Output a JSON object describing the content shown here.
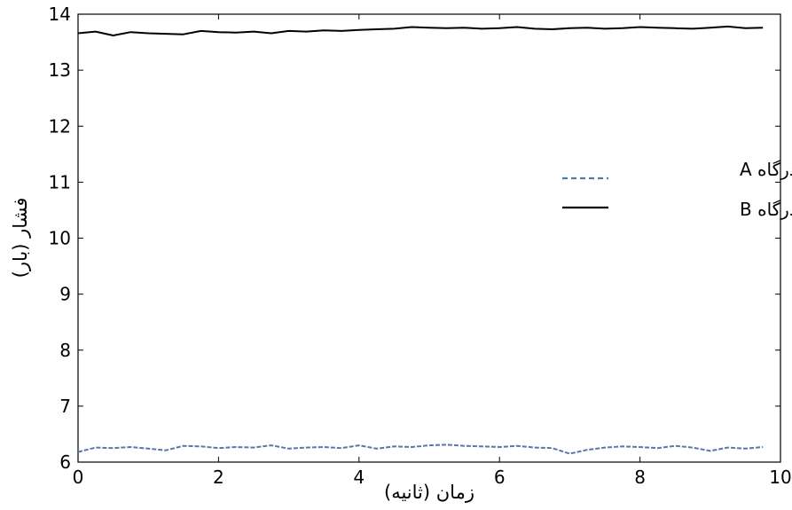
{
  "chart_data": {
    "type": "line",
    "title": "",
    "xlabel": "زمان (ثانیه)",
    "ylabel": "فشار (بار)",
    "xlim": [
      0,
      10
    ],
    "ylim": [
      6,
      14
    ],
    "xticks": [
      0,
      2,
      4,
      6,
      8,
      10
    ],
    "yticks": [
      6,
      7,
      8,
      9,
      10,
      11,
      12,
      13,
      14
    ],
    "grid": false,
    "legend_position": "right",
    "series": [
      {
        "name": "فشار درگاه A",
        "color": "#5b76a8",
        "style": "dashed",
        "x": [
          0.0,
          0.25,
          0.5,
          0.75,
          1.0,
          1.25,
          1.5,
          1.75,
          2.0,
          2.25,
          2.5,
          2.75,
          3.0,
          3.25,
          3.5,
          3.75,
          4.0,
          4.25,
          4.5,
          4.75,
          5.0,
          5.25,
          5.5,
          5.75,
          6.0,
          6.25,
          6.5,
          6.75,
          7.0,
          7.25,
          7.5,
          7.75,
          8.0,
          8.25,
          8.5,
          8.75,
          9.0,
          9.25,
          9.5,
          9.75
        ],
        "y": [
          6.18,
          6.26,
          6.25,
          6.27,
          6.24,
          6.21,
          6.29,
          6.28,
          6.25,
          6.27,
          6.26,
          6.3,
          6.24,
          6.26,
          6.27,
          6.25,
          6.3,
          6.24,
          6.28,
          6.27,
          6.3,
          6.31,
          6.29,
          6.28,
          6.27,
          6.29,
          6.26,
          6.25,
          6.15,
          6.22,
          6.26,
          6.28,
          6.27,
          6.25,
          6.29,
          6.26,
          6.2,
          6.26,
          6.24,
          6.27
        ]
      },
      {
        "name": "فشار درگاه B",
        "color": "#000000",
        "style": "solid",
        "x": [
          0.0,
          0.25,
          0.5,
          0.75,
          1.0,
          1.25,
          1.5,
          1.75,
          2.0,
          2.25,
          2.5,
          2.75,
          3.0,
          3.25,
          3.5,
          3.75,
          4.0,
          4.25,
          4.5,
          4.75,
          5.0,
          5.25,
          5.5,
          5.75,
          6.0,
          6.25,
          6.5,
          6.75,
          7.0,
          7.25,
          7.5,
          7.75,
          8.0,
          8.25,
          8.5,
          8.75,
          9.0,
          9.25,
          9.5,
          9.75
        ],
        "y": [
          13.66,
          13.69,
          13.62,
          13.68,
          13.66,
          13.65,
          13.64,
          13.7,
          13.68,
          13.67,
          13.69,
          13.66,
          13.7,
          13.69,
          13.71,
          13.7,
          13.72,
          13.73,
          13.74,
          13.77,
          13.76,
          13.75,
          13.76,
          13.74,
          13.75,
          13.77,
          13.74,
          13.73,
          13.75,
          13.76,
          13.74,
          13.75,
          13.77,
          13.76,
          13.75,
          13.74,
          13.76,
          13.78,
          13.75,
          13.76
        ]
      }
    ]
  }
}
